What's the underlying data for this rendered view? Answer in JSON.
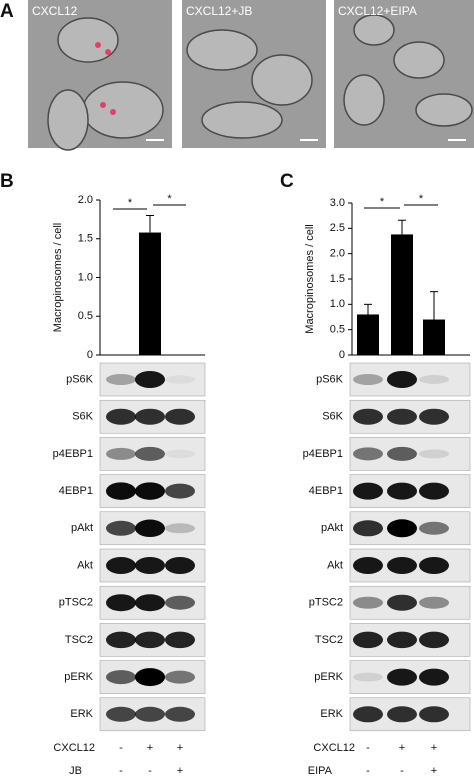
{
  "panel_labels": [
    "A",
    "B",
    "C"
  ],
  "micrographs": [
    "CXCL12",
    "CXCL12+JB",
    "CXCL12+EIPA"
  ],
  "chart_data": [
    {
      "type": "bar",
      "ylabel": "Macropinosomes / cell",
      "categories": [
        null,
        null,
        null
      ],
      "values": [
        0,
        1.58,
        0
      ],
      "errors": [
        0,
        0.22,
        0
      ],
      "color": "#000000",
      "ylim": [
        0,
        2
      ],
      "yticks": [
        0,
        0.5,
        {
          "value": 1,
          "label": "1.0"
        },
        1.5,
        {
          "value": 2,
          "label": "2.0"
        }
      ],
      "annotations": [
        "*",
        "*"
      ]
    },
    {
      "type": "bar",
      "ylabel": "Macropinosomes / cell",
      "categories": [
        null,
        null,
        null
      ],
      "values": [
        0.8,
        2.38,
        0.7
      ],
      "errors": [
        0.2,
        0.28,
        0.55
      ],
      "color": "#000000",
      "ylim": [
        0,
        3
      ],
      "yticks": [
        0,
        0.5,
        {
          "value": 1,
          "label": "1.0"
        },
        1.5,
        {
          "value": 2,
          "label": "2.0"
        },
        2.5,
        {
          "value": 3,
          "label": "3.0"
        }
      ],
      "annotations": [
        "*",
        "*"
      ]
    }
  ],
  "blots": [
    [
      "pS6K",
      "S6K",
      "p4EBP1",
      "4EBP1",
      "pAkt",
      "Akt",
      "pTSC2",
      "TSC2",
      "pERK",
      "ERK"
    ],
    [
      "pS6K",
      "S6K",
      "p4EBP1",
      "4EBP1",
      "pAkt",
      "Akt",
      "pTSC2",
      "TSC2",
      "pERK",
      "ERK"
    ]
  ],
  "treatments": [
    [
      {
        "name": "CXCL12",
        "signs": [
          "-",
          "+",
          "+"
        ]
      },
      {
        "name": "JB",
        "signs": [
          "-",
          "-",
          "+"
        ]
      }
    ],
    [
      {
        "name": "CXCL12",
        "signs": [
          "-",
          "+",
          "+"
        ]
      },
      {
        "name": "EIPA",
        "signs": [
          "-",
          "-",
          "+"
        ]
      }
    ]
  ]
}
